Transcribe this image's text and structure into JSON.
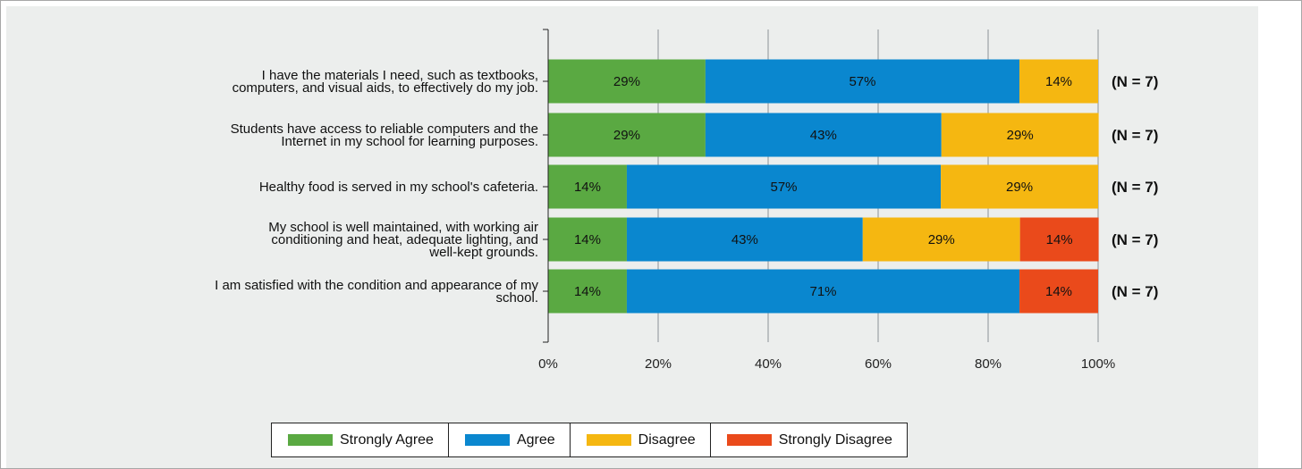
{
  "chart_data": {
    "type": "bar",
    "orientation": "horizontal",
    "stacked": true,
    "categories": [
      "I have the materials I need, such as textbooks, computers, and visual aids, to effectively do my job.",
      "Students have access to reliable computers and the Internet in my school for learning purposes.",
      "Healthy food is served in my school's cafeteria.",
      "My school is well maintained, with working air conditioning and heat, adequate lighting, and well-kept grounds.",
      "I am satisfied with the condition and appearance of my school."
    ],
    "category_label_lines": [
      [
        "I have the materials I need, such as textbooks,",
        "computers, and visual aids, to effectively do my job."
      ],
      [
        "Students have access to reliable computers and the",
        "Internet in my school for learning purposes."
      ],
      [
        "Healthy food is served in my school's cafeteria."
      ],
      [
        "My school is well maintained, with working air",
        "conditioning and heat, adequate lighting, and",
        "well-kept grounds."
      ],
      [
        "I am satisfied with the condition and appearance of my",
        "school."
      ]
    ],
    "series": [
      {
        "name": "Strongly Agree",
        "color": "#5aa942",
        "values": [
          28.6,
          28.6,
          14.3,
          14.3,
          14.3
        ],
        "labels": [
          "29%",
          "29%",
          "14%",
          "14%",
          "14%"
        ]
      },
      {
        "name": "Agree",
        "color": "#0a87cf",
        "values": [
          57.1,
          42.9,
          57.1,
          42.9,
          71.4
        ],
        "labels": [
          "57%",
          "43%",
          "57%",
          "43%",
          "71%"
        ]
      },
      {
        "name": "Disagree",
        "color": "#f5b711",
        "values": [
          14.3,
          28.6,
          28.6,
          28.6,
          0
        ],
        "labels": [
          "14%",
          "29%",
          "29%",
          "29%",
          ""
        ]
      },
      {
        "name": "Strongly Disagree",
        "color": "#ea4a1b",
        "values": [
          0,
          0,
          0,
          14.3,
          14.3
        ],
        "labels": [
          "",
          "",
          "",
          "14%",
          "14%"
        ]
      }
    ],
    "n_labels": [
      "(N = 7)",
      "(N = 7)",
      "(N = 7)",
      "(N = 7)",
      "(N = 7)"
    ],
    "xlim": [
      0,
      100
    ],
    "x_ticks": [
      "0%",
      "20%",
      "40%",
      "60%",
      "80%",
      "100%"
    ],
    "grid": true,
    "legend_position": "bottom"
  }
}
